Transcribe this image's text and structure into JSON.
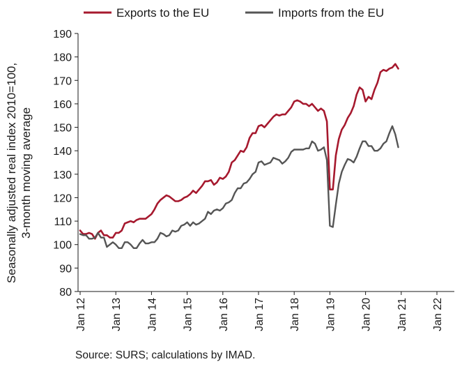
{
  "source_note": "Source: SURS; calculations by IMAD.",
  "chart_data": {
    "type": "line",
    "title": "",
    "ylabel": "Seasonally adjusted real index 2010=100,",
    "ylabel_line2": "3-month moving average",
    "xlabel": "",
    "ylim": [
      80,
      190
    ],
    "yticks": [
      80,
      90,
      100,
      110,
      120,
      130,
      140,
      150,
      160,
      170,
      180,
      190
    ],
    "xticks": [
      "Jan 12",
      "Jan 13",
      "Jan 14",
      "Jan 15",
      "Jan 16",
      "Jan 17",
      "Jan 18",
      "Jan 19",
      "Jan 20",
      "Jan 21",
      "Jan 22"
    ],
    "x_start": "Jan 2012",
    "x_frequency": "monthly",
    "grid": false,
    "legend_position": "top",
    "series": [
      {
        "name": "Exports to the EU",
        "color": "#a6192e",
        "values": [
          106,
          104.5,
          104.5,
          105,
          104.5,
          102.5,
          105,
          106,
          104,
          104,
          103,
          103,
          105,
          105,
          106,
          109,
          109.5,
          110,
          109.5,
          110.5,
          111,
          111,
          111,
          112,
          113,
          115,
          117.5,
          119,
          120,
          121,
          120.5,
          119.5,
          118.5,
          118.5,
          119,
          120,
          120.5,
          121.5,
          123,
          122,
          123.5,
          125,
          127,
          127,
          127.5,
          125.5,
          126.5,
          128.5,
          128,
          129,
          131,
          135,
          136,
          138,
          140,
          139.5,
          141.5,
          145.5,
          147.5,
          147.5,
          150.5,
          151,
          150,
          151.5,
          153,
          154.5,
          155.5,
          155,
          155.5,
          155.5,
          157,
          158.5,
          161,
          161.5,
          161,
          160,
          160,
          159,
          160,
          158.5,
          157,
          158,
          157,
          152.5,
          123.5,
          123.5,
          138,
          145,
          149,
          151,
          154,
          156,
          159,
          164,
          167,
          166,
          161,
          163,
          162,
          166,
          169,
          173.5,
          174.5,
          174,
          175,
          175.5,
          177,
          175
        ]
      },
      {
        "name": "Imports from the EU",
        "color": "#555555",
        "values": [
          104.5,
          104,
          104,
          102.5,
          102.5,
          103,
          105,
          103,
          103,
          99,
          100,
          101,
          100,
          98.5,
          98.5,
          101,
          101,
          100,
          98.5,
          98.5,
          100.5,
          102,
          100.5,
          100.5,
          101,
          101,
          102.5,
          105,
          104.5,
          103.5,
          104,
          106,
          105.5,
          106,
          108,
          108.5,
          109.5,
          108,
          109.5,
          108.5,
          109,
          110,
          111,
          114,
          113,
          114.5,
          115,
          114.5,
          115.5,
          117.5,
          118,
          119,
          122,
          124,
          124,
          126,
          126.5,
          128,
          130,
          131,
          135,
          135.5,
          134,
          134.5,
          135,
          137,
          136.5,
          136,
          134.5,
          135.5,
          137,
          139.5,
          140.5,
          140.5,
          140.5,
          140.5,
          141,
          141,
          144,
          143,
          140,
          140.5,
          141.5,
          136,
          108,
          107.5,
          117,
          126,
          131,
          134,
          136.5,
          136,
          135,
          137.5,
          141,
          144,
          144,
          142,
          142,
          140,
          140,
          141,
          143,
          144,
          147.5,
          150.5,
          147,
          141.5
        ]
      }
    ]
  }
}
